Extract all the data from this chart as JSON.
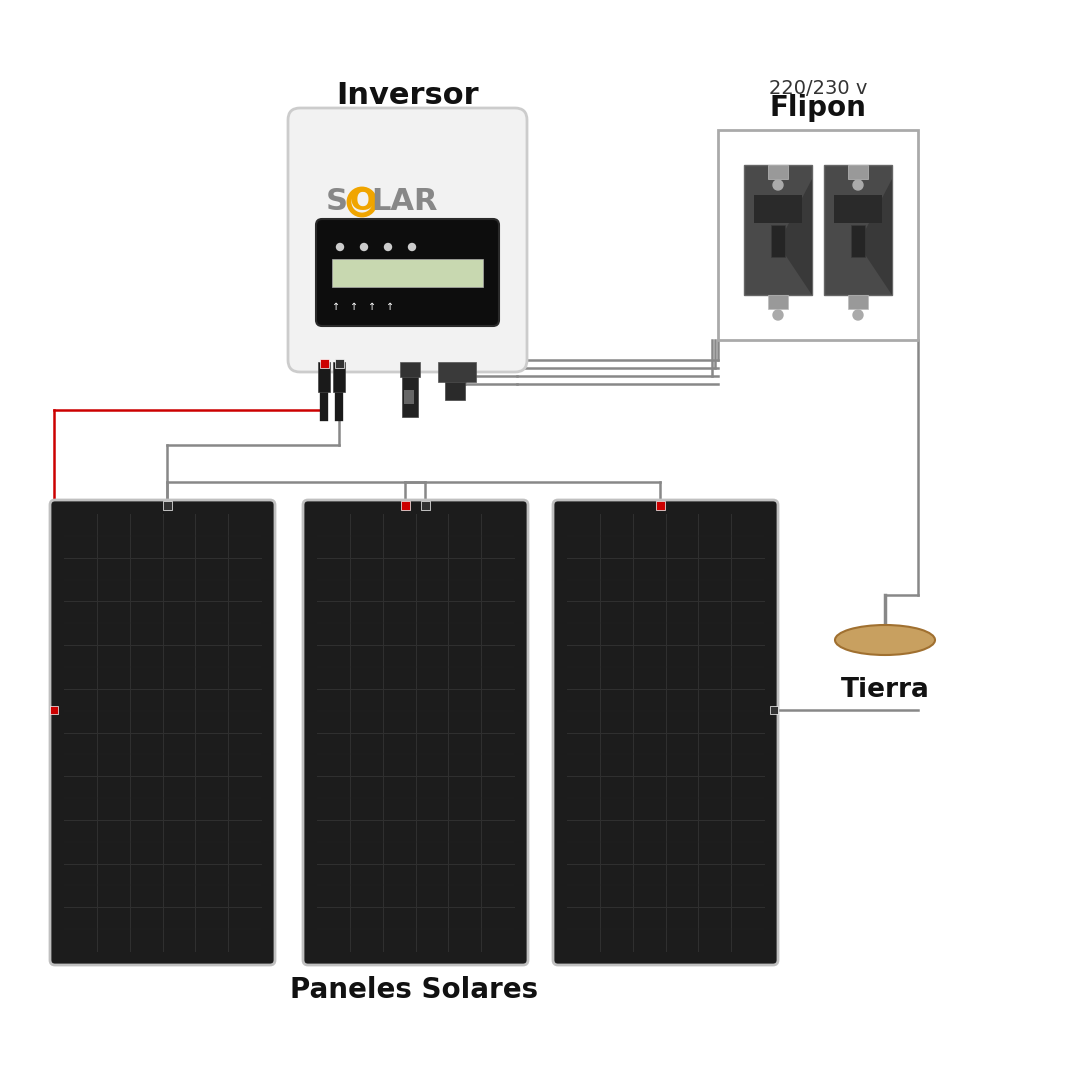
{
  "bg": "#ffffff",
  "inversor_label": "Inversor",
  "flipon_label": "Flipon",
  "flipon_sublabel": "220/230 v",
  "tierra_label": "Tierra",
  "paneles_label": "Paneles Solares",
  "panel_dark": "#1c1c1c",
  "panel_border": "#c0c0c0",
  "panel_grid": "#303030",
  "panel_grid2": "#282828",
  "inv_body": "#f2f2f2",
  "inv_border": "#cccccc",
  "solar_o_color": "#f0a500",
  "solar_text_color": "#888888",
  "flipon_dark": "#4a4a4a",
  "flipon_mid": "#666666",
  "flipon_light": "#999999",
  "flipon_box_bg": "#ffffff",
  "flipon_box_border": "#aaaaaa",
  "tierra_fill": "#c8a060",
  "tierra_border": "#a07030",
  "wire_gray": "#888888",
  "wire_red": "#cc0000",
  "label_color": "#111111",
  "connector_red": "#cc0000",
  "connector_dark": "#333333",
  "inv_conn_dark": "#1a1a1a",
  "inv_conn_mid": "#444444",
  "disp_bg": "#0d0d0d",
  "lcd_bg": "#c8d8b0"
}
